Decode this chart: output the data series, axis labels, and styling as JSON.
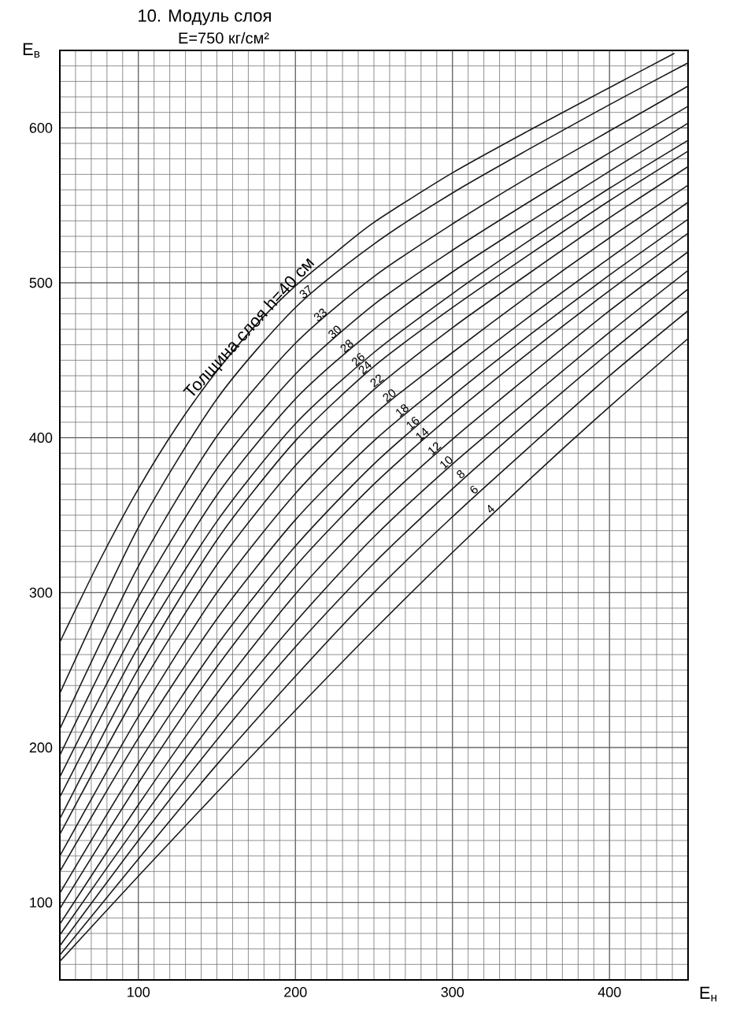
{
  "chart_data": {
    "type": "line",
    "title": "10. Модуль слоя",
    "subtitle": "E=750 кг/см²",
    "xlabel": "E$_{н}$",
    "ylabel": "E$_{в}$",
    "xlim": [
      50,
      450
    ],
    "ylim": [
      50,
      650
    ],
    "xticks": [
      100,
      200,
      300,
      400
    ],
    "yticks": [
      100,
      200,
      300,
      400,
      500,
      600
    ],
    "grid": true,
    "marker": "none",
    "line_style": "solid",
    "series": [
      {
        "name": "Толщина слоя h=40 см",
        "color": "#1a1a1a",
        "x": [
          50,
          75,
          100,
          125,
          150,
          175,
          200,
          225,
          250,
          300,
          350,
          400,
          441
        ],
        "values": [
          268,
          320,
          367,
          408,
          443,
          473,
          498,
          519,
          539,
          571,
          599,
          626,
          648
        ]
      },
      {
        "name": "37",
        "color": "#1a1a1a",
        "x": [
          50,
          100,
          150,
          200,
          250,
          300,
          350,
          400,
          450
        ],
        "values": [
          235,
          342,
          425,
          484,
          525,
          558,
          587,
          615,
          642
        ]
      },
      {
        "name": "33",
        "color": "#1a1a1a",
        "x": [
          50,
          100,
          150,
          200,
          250,
          300,
          350,
          400,
          450
        ],
        "values": [
          212,
          317,
          401,
          461,
          504,
          538,
          569,
          598,
          627
        ]
      },
      {
        "name": "30",
        "color": "#1a1a1a",
        "x": [
          50,
          100,
          150,
          200,
          250,
          300,
          350,
          400,
          450
        ],
        "values": [
          195,
          297,
          380,
          441,
          486,
          521,
          553,
          584,
          614
        ]
      },
      {
        "name": "28",
        "color": "#1a1a1a",
        "x": [
          50,
          100,
          150,
          200,
          250,
          300,
          350,
          400,
          450
        ],
        "values": [
          181,
          280,
          363,
          425,
          470,
          507,
          540,
          572,
          603
        ]
      },
      {
        "name": "26",
        "color": "#1a1a1a",
        "x": [
          50,
          100,
          150,
          200,
          250,
          300,
          350,
          400,
          450
        ],
        "values": [
          168,
          265,
          346,
          409,
          455,
          493,
          528,
          561,
          592
        ]
      },
      {
        "name": "24",
        "color": "#1a1a1a",
        "x": [
          50,
          100,
          150,
          200,
          250,
          300,
          350,
          400,
          450
        ],
        "values": [
          154,
          251,
          334,
          398,
          446,
          484,
          519,
          553,
          585
        ]
      },
      {
        "name": "22",
        "color": "#1a1a1a",
        "x": [
          50,
          100,
          150,
          200,
          250,
          300,
          350,
          400,
          450
        ],
        "values": [
          144,
          237,
          318,
          382,
          431,
          471,
          507,
          542,
          575
        ]
      },
      {
        "name": "20",
        "color": "#1a1a1a",
        "x": [
          50,
          100,
          150,
          200,
          250,
          300,
          350,
          400,
          450
        ],
        "values": [
          130,
          220,
          300,
          364,
          415,
          455,
          493,
          529,
          563
        ]
      },
      {
        "name": "18",
        "color": "#1a1a1a",
        "x": [
          50,
          100,
          150,
          200,
          250,
          300,
          350,
          400,
          450
        ],
        "values": [
          120,
          206,
          283,
          347,
          398,
          440,
          479,
          516,
          552
        ]
      },
      {
        "name": "16",
        "color": "#1a1a1a",
        "x": [
          50,
          100,
          150,
          200,
          250,
          300,
          350,
          400,
          450
        ],
        "values": [
          106,
          190,
          266,
          330,
          383,
          427,
          467,
          505,
          541
        ]
      },
      {
        "name": "14",
        "color": "#1a1a1a",
        "x": [
          50,
          100,
          150,
          200,
          250,
          300,
          350,
          400,
          450
        ],
        "values": [
          96,
          177,
          252,
          317,
          370,
          415,
          456,
          495,
          532
        ]
      },
      {
        "name": "12",
        "color": "#1a1a1a",
        "x": [
          50,
          100,
          150,
          200,
          250,
          300,
          350,
          400,
          450
        ],
        "values": [
          86,
          163,
          235,
          299,
          353,
          399,
          441,
          482,
          520
        ]
      },
      {
        "name": "10",
        "color": "#1a1a1a",
        "x": [
          50,
          100,
          150,
          200,
          250,
          300,
          350,
          400,
          450
        ],
        "values": [
          79,
          151,
          220,
          281,
          336,
          383,
          426,
          468,
          508
        ]
      },
      {
        "name": "8",
        "color": "#1a1a1a",
        "x": [
          50,
          100,
          150,
          200,
          250,
          300,
          350,
          400,
          450
        ],
        "values": [
          72,
          140,
          205,
          265,
          319,
          367,
          412,
          455,
          496
        ]
      },
      {
        "name": "6",
        "color": "#1a1a1a",
        "x": [
          50,
          100,
          150,
          200,
          250,
          300,
          350,
          400,
          450
        ],
        "values": [
          66,
          128,
          189,
          246,
          300,
          349,
          395,
          440,
          482
        ]
      },
      {
        "name": "4",
        "color": "#1a1a1a",
        "x": [
          50,
          100,
          150,
          200,
          250,
          300,
          350,
          400,
          450
        ],
        "values": [
          62,
          117,
          171,
          224,
          276,
          326,
          374,
          420,
          464
        ]
      }
    ]
  }
}
